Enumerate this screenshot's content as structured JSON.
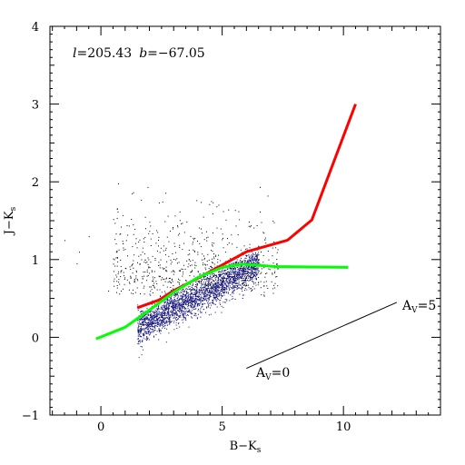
{
  "chart_data": {
    "type": "scatter",
    "title": "",
    "annotation": {
      "l_symbol": "l",
      "l_value": "=205.43",
      "b_symbol": "b",
      "b_value": "=−67.05"
    },
    "xlabel": "B−K",
    "xlabel_sub": "s",
    "ylabel": "J−K",
    "ylabel_sub": "s",
    "xlim": [
      -2.1,
      14.0
    ],
    "ylim": [
      -1,
      4
    ],
    "xticks": [
      0,
      5,
      10
    ],
    "xtick_labels": [
      "0",
      "5",
      "10"
    ],
    "yticks": [
      -1,
      0,
      1,
      2,
      3,
      4
    ],
    "ytick_labels": [
      "−1",
      "0",
      "1",
      "2",
      "3",
      "4"
    ],
    "grid": false,
    "series": [
      {
        "kind": "line",
        "color": "#ff0000",
        "x": [
          1.5,
          2.4,
          3.0,
          4.0,
          5.0,
          6.0,
          6.8,
          7.7,
          8.7,
          10.5
        ],
        "y": [
          0.38,
          0.48,
          0.6,
          0.76,
          0.93,
          1.1,
          1.17,
          1.25,
          1.51,
          3.0
        ]
      },
      {
        "kind": "line",
        "color": "#00ff00",
        "x": [
          -0.2,
          1.0,
          2.0,
          3.0,
          4.0,
          5.0,
          5.8,
          7.2,
          10.2
        ],
        "y": [
          -0.02,
          0.13,
          0.35,
          0.58,
          0.77,
          0.9,
          0.94,
          0.91,
          0.9
        ]
      },
      {
        "kind": "line",
        "color": "#000000",
        "x": [
          6.0,
          12.2
        ],
        "y": [
          -0.4,
          0.45
        ]
      }
    ],
    "scatter_description": "dense cloud of dark blue points concentrated along 1.5<B-Ks<6.5, 0.2<J-Ks<1.2 with sparse black points above (up to J-Ks~2)",
    "reddening_vector": {
      "start_label": "A",
      "start_sub": "V",
      "start_value": "=0",
      "end_label": "A",
      "end_sub": "V",
      "end_value": "=5"
    }
  }
}
